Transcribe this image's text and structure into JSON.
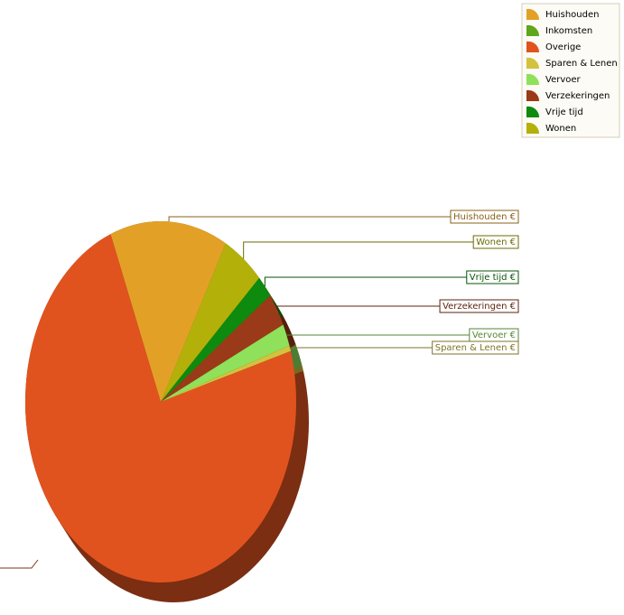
{
  "chart_data": {
    "type": "pie3d",
    "categories": [
      "Huishouden",
      "Inkomsten",
      "Overige",
      "Sparen & Lenen",
      "Vervoer",
      "Verzekeringen",
      "Vrije tijd",
      "Wonen"
    ],
    "values": [
      14,
      0,
      73.5,
      0.5,
      2,
      3,
      2,
      5
    ],
    "colors": [
      "#e2a126",
      "#5fa61c",
      "#e0531f",
      "#d3c23e",
      "#8fe05a",
      "#9a3a18",
      "#0e8a0e",
      "#b3b00a"
    ],
    "callout_labels": [
      "Huishouden €",
      null,
      null,
      "Sparen & Lenen €",
      "Vervoer €",
      "Verzekeringen €",
      "Vrije tijd €",
      "Wonen €"
    ],
    "legend": "top-right"
  }
}
